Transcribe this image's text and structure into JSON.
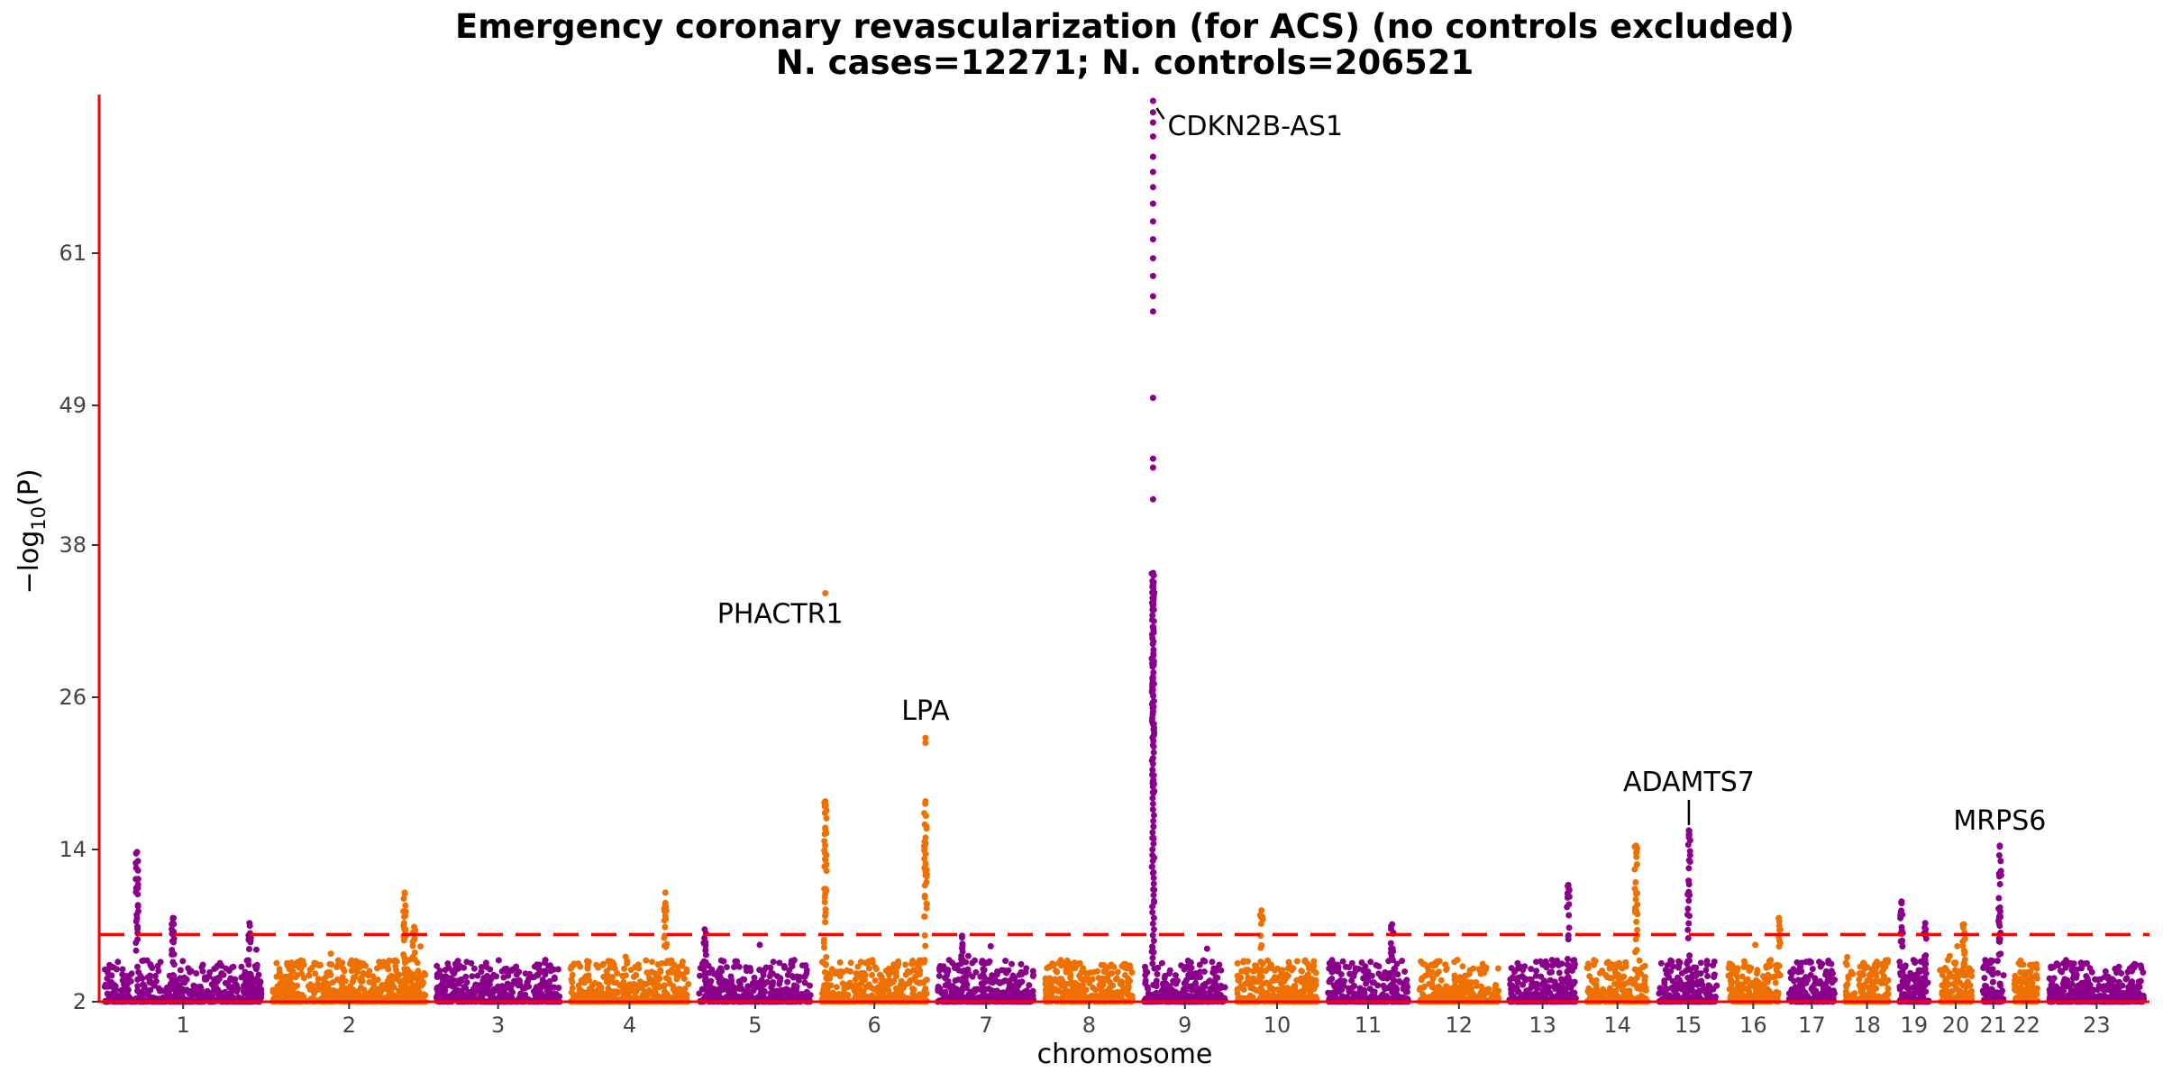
{
  "chart_data": {
    "type": "scatter",
    "title_line1": "Emergency coronary revascularization (for ACS) (no controls excluded)",
    "title_line2": "N. cases=12271; N. controls=206521",
    "xlabel": "chromosome",
    "ylabel": "−log10(P)",
    "ylim": [
      2,
      73.5
    ],
    "yticks": [
      2,
      14,
      26,
      38,
      49,
      61
    ],
    "threshold": 7.3,
    "colors": {
      "odd": "#8b008b",
      "even": "#ee7000",
      "threshold": "#ff0000",
      "axis": "#ff0000"
    },
    "chromosomes": [
      {
        "label": "1",
        "start": 0,
        "end": 248
      },
      {
        "label": "2",
        "start": 248,
        "end": 490
      },
      {
        "label": "3",
        "start": 490,
        "end": 688
      },
      {
        "label": "4",
        "start": 688,
        "end": 878
      },
      {
        "label": "5",
        "start": 878,
        "end": 1059
      },
      {
        "label": "6",
        "start": 1059,
        "end": 1230
      },
      {
        "label": "7",
        "start": 1230,
        "end": 1389
      },
      {
        "label": "8",
        "start": 1389,
        "end": 1534
      },
      {
        "label": "9",
        "start": 1534,
        "end": 1672
      },
      {
        "label": "10",
        "start": 1672,
        "end": 1806
      },
      {
        "label": "11",
        "start": 1806,
        "end": 1941
      },
      {
        "label": "12",
        "start": 1941,
        "end": 2074
      },
      {
        "label": "13",
        "start": 2074,
        "end": 2188
      },
      {
        "label": "14",
        "start": 2188,
        "end": 2295
      },
      {
        "label": "15",
        "start": 2295,
        "end": 2397
      },
      {
        "label": "16",
        "start": 2397,
        "end": 2487
      },
      {
        "label": "17",
        "start": 2487,
        "end": 2570
      },
      {
        "label": "18",
        "start": 2570,
        "end": 2650
      },
      {
        "label": "19",
        "start": 2650,
        "end": 2709
      },
      {
        "label": "20",
        "start": 2709,
        "end": 2773
      },
      {
        "label": "21",
        "start": 2773,
        "end": 2820
      },
      {
        "label": "22",
        "start": 2820,
        "end": 2871
      },
      {
        "label": "23",
        "start": 2871,
        "end": 3027
      }
    ],
    "peaks": [
      {
        "chr": "1",
        "pos": 56,
        "peak": 13.8
      },
      {
        "chr": "1",
        "pos": 109,
        "peak": 8.6
      },
      {
        "chr": "1",
        "pos": 222,
        "peak": 8.2
      },
      {
        "chr": "2",
        "pos": 203,
        "peak": 10.6
      },
      {
        "chr": "2",
        "pos": 217,
        "peak": 7.9
      },
      {
        "chr": "4",
        "pos": 148,
        "peak": 10.6
      },
      {
        "chr": "5",
        "pos": 16,
        "peak": 7.7
      },
      {
        "chr": "6",
        "pos": 13,
        "peak": 17.8
      },
      {
        "chr": "6",
        "pos": 161,
        "peak": 17.8
      },
      {
        "chr": "7",
        "pos": 44,
        "peak": 7.2
      },
      {
        "chr": "9",
        "pos": 22,
        "peak": 35.8
      },
      {
        "chr": "10",
        "pos": 44,
        "peak": 9.2
      },
      {
        "chr": "11",
        "pos": 103,
        "peak": 8.1
      },
      {
        "chr": "13",
        "pos": 95,
        "peak": 11.2
      },
      {
        "chr": "14",
        "pos": 81,
        "peak": 14.3
      },
      {
        "chr": "15",
        "pos": 52,
        "peak": 15.5
      },
      {
        "chr": "16",
        "pos": 83,
        "peak": 8.6
      },
      {
        "chr": "19",
        "pos": 11,
        "peak": 9.9
      },
      {
        "chr": "19",
        "pos": 46,
        "peak": 8.2
      },
      {
        "chr": "20",
        "pos": 44,
        "peak": 8.1
      },
      {
        "chr": "21",
        "pos": 33,
        "peak": 14.3
      }
    ],
    "annotations": [
      {
        "label": "CDKN2B-AS1",
        "chr": "9",
        "pos": 22,
        "y": 73.0
      },
      {
        "label": "PHACTR1",
        "chr": "6",
        "pos": 13,
        "y": 34.2
      },
      {
        "label": "LPA",
        "chr": "6",
        "pos": 161,
        "y": 22.8
      },
      {
        "label": "ADAMTS7",
        "chr": "15",
        "pos": 52,
        "y": 15.5
      },
      {
        "label": "MRPS6",
        "chr": "21",
        "pos": 33,
        "y": 14.3
      }
    ],
    "top_hits": [
      {
        "chr": "9",
        "pos": 22,
        "values": [
          73.0,
          72.1,
          71.3,
          70.2,
          68.6,
          67.4,
          66.2,
          64.9,
          63.5,
          62.1,
          60.6,
          59.2,
          57.6,
          56.4,
          49.6,
          44.8,
          44.1,
          41.6
        ]
      },
      {
        "chr": "6",
        "pos": 13,
        "values": [
          34.2
        ]
      },
      {
        "chr": "6",
        "pos": 161,
        "values": [
          22.8,
          22.4
        ]
      }
    ]
  }
}
